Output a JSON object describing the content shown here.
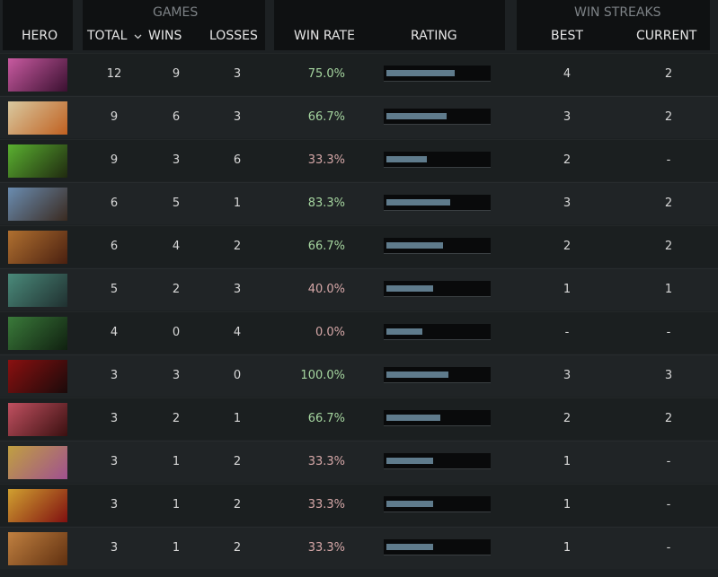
{
  "header": {
    "hero": "HERO",
    "groups": {
      "games": "GAMES",
      "win_streaks": "WIN STREAKS"
    },
    "columns": {
      "total": "TOTAL",
      "wins": "WINS",
      "losses": "LOSSES",
      "win_rate": "WIN RATE",
      "rating": "RATING",
      "best": "BEST",
      "current": "CURRENT"
    }
  },
  "rating_range": [
    0,
    100
  ],
  "rows": [
    {
      "total": 12,
      "wins": 9,
      "losses": 3,
      "win_rate": "75.0%",
      "rating": 67,
      "best": 4,
      "current": 2
    },
    {
      "total": 9,
      "wins": 6,
      "losses": 3,
      "win_rate": "66.7%",
      "rating": 59,
      "best": 3,
      "current": 2
    },
    {
      "total": 9,
      "wins": 3,
      "losses": 6,
      "win_rate": "33.3%",
      "rating": 40,
      "best": 2,
      "current": "-"
    },
    {
      "total": 6,
      "wins": 5,
      "losses": 1,
      "win_rate": "83.3%",
      "rating": 63,
      "best": 3,
      "current": 2
    },
    {
      "total": 6,
      "wins": 4,
      "losses": 2,
      "win_rate": "66.7%",
      "rating": 56,
      "best": 2,
      "current": 2
    },
    {
      "total": 5,
      "wins": 2,
      "losses": 3,
      "win_rate": "40.0%",
      "rating": 46,
      "best": 1,
      "current": 1
    },
    {
      "total": 4,
      "wins": 0,
      "losses": 4,
      "win_rate": "0.0%",
      "rating": 35,
      "best": "-",
      "current": "-"
    },
    {
      "total": 3,
      "wins": 3,
      "losses": 0,
      "win_rate": "100.0%",
      "rating": 61,
      "best": 3,
      "current": 3
    },
    {
      "total": 3,
      "wins": 2,
      "losses": 1,
      "win_rate": "66.7%",
      "rating": 53,
      "best": 2,
      "current": 2
    },
    {
      "total": 3,
      "wins": 1,
      "losses": 2,
      "win_rate": "33.3%",
      "rating": 46,
      "best": 1,
      "current": "-"
    },
    {
      "total": 3,
      "wins": 1,
      "losses": 2,
      "win_rate": "33.3%",
      "rating": 46,
      "best": 1,
      "current": "-"
    },
    {
      "total": 3,
      "wins": 1,
      "losses": 2,
      "win_rate": "33.3%",
      "rating": 46,
      "best": 1,
      "current": "-"
    }
  ]
}
